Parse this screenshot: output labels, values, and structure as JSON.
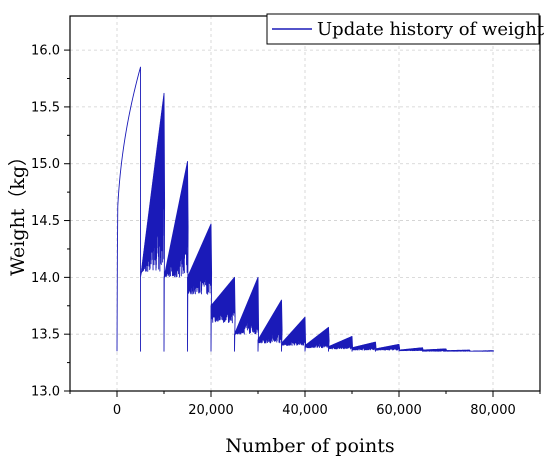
{
  "chart_data": {
    "type": "line",
    "xlabel": "Number of points",
    "ylabel": "Weight（kg）",
    "xlim": [
      -10000,
      90000
    ],
    "ylim": [
      13.0,
      16.3
    ],
    "x_ticks": [
      0,
      20000,
      40000,
      60000,
      80000
    ],
    "x_tick_labels": [
      "0",
      "20,000",
      "40,000",
      "60,000",
      "80,000"
    ],
    "y_ticks": [
      13.0,
      13.5,
      14.0,
      14.5,
      15.0,
      15.5,
      16.0
    ],
    "y_tick_labels": [
      "13.0",
      "13.5",
      "14.0",
      "14.5",
      "15.0",
      "15.5",
      "16.0"
    ],
    "grid": true,
    "legend_position": "top-right",
    "series": [
      {
        "name": "Update history of weight",
        "color": "#1a1ab8",
        "description_free_values": {
          "start_weight": 13.35,
          "final_weight": 13.35,
          "x_end": 80000,
          "cycle_length": 5000,
          "cycle_start_values": [
            13.35,
            13.35,
            13.35,
            13.35,
            13.35,
            13.35,
            13.35,
            13.35,
            13.35,
            13.35,
            13.35,
            13.35,
            13.35,
            13.35,
            13.35,
            13.35
          ],
          "cycle_upper_envelope_start": [
            14.35,
            14.0,
            14.0,
            14.0,
            13.75,
            13.5,
            13.45,
            13.42,
            13.4,
            13.39,
            13.38,
            13.37,
            13.36,
            13.36,
            13.355,
            13.35
          ],
          "cycle_upper_envelope_end": [
            15.85,
            15.62,
            15.02,
            14.47,
            14.0,
            14.0,
            13.8,
            13.65,
            13.56,
            13.48,
            13.43,
            13.41,
            13.38,
            13.37,
            13.36,
            13.355
          ],
          "cycle_lower_envelope_end": [
            13.35,
            14.05,
            14.0,
            13.85,
            13.6,
            13.5,
            13.42,
            13.4,
            13.38,
            13.37,
            13.36,
            13.36,
            13.355,
            13.35,
            13.35,
            13.35
          ]
        }
      }
    ]
  }
}
